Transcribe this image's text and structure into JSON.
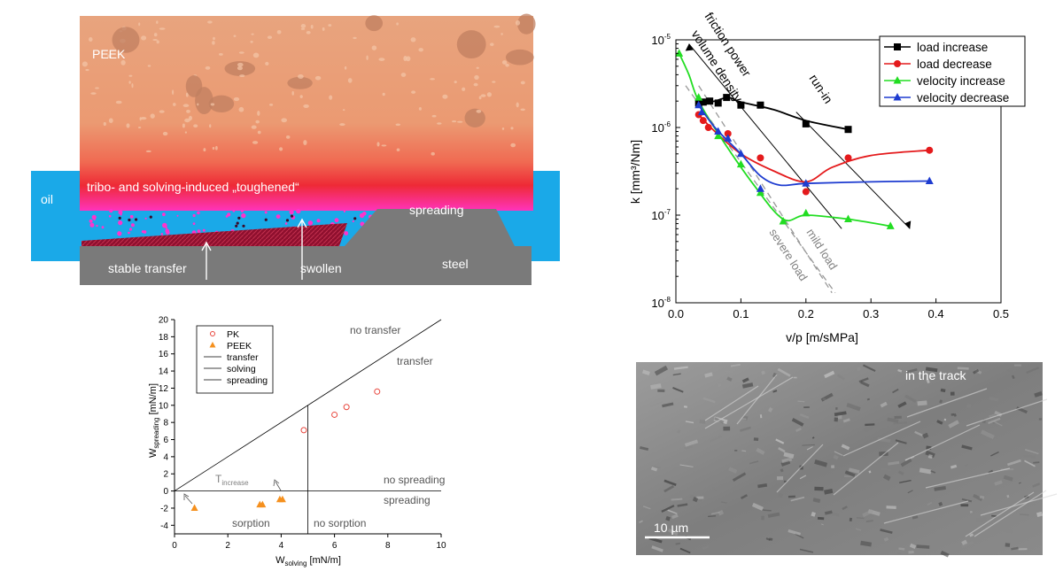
{
  "schematic": {
    "peek_label": "PEEK",
    "oil_label": "oil",
    "layer_label": "tribo- and solving-induced „toughened“",
    "spreading_label": "spreading",
    "stable_transfer_label": "stable transfer",
    "swollen_label": "swollen",
    "steel_label": "steel",
    "colors": {
      "oil": "#1aa9e8",
      "steel": "#7a7a7a",
      "peek": "#e9a57a",
      "layer": "#ee2233",
      "transfer": "#9b1030",
      "particles": "#ff33cc"
    }
  },
  "sem": {
    "label": "in the track",
    "scalebar": "10 µm"
  },
  "chart_data": [
    {
      "type": "scatter",
      "id": "wear",
      "xlabel": "v/p [m/sMPa]",
      "ylabel": "k [mm³/Nm]",
      "xlim": [
        0,
        0.5
      ],
      "ylim": [
        1e-08,
        1e-05
      ],
      "yscale": "log",
      "x_ticks": [
        "0.0",
        "0.1",
        "0.2",
        "0.3",
        "0.4",
        "0.5"
      ],
      "y_ticks": [
        "10-8",
        "10-7",
        "10-6",
        "10-5"
      ],
      "legend_position": "top-right",
      "series": [
        {
          "name": "load increase",
          "color": "#000000",
          "marker": "square",
          "points": [
            [
              0.035,
              1.9e-06
            ],
            [
              0.042,
              1.95e-06
            ],
            [
              0.052,
              2e-06
            ],
            [
              0.065,
              1.9e-06
            ],
            [
              0.078,
              2.2e-06
            ],
            [
              0.1,
              1.8e-06
            ],
            [
              0.13,
              1.8e-06
            ],
            [
              0.2,
              1.1e-06
            ],
            [
              0.265,
              9.5e-07
            ]
          ],
          "curve": [
            [
              0.035,
              1.9e-06
            ],
            [
              0.06,
              2e-06
            ],
            [
              0.08,
              2.2e-06
            ],
            [
              0.1,
              1.95e-06
            ],
            [
              0.15,
              1.6e-06
            ],
            [
              0.2,
              1.2e-06
            ],
            [
              0.265,
              9.5e-07
            ]
          ]
        },
        {
          "name": "load decrease",
          "color": "#e41a1c",
          "marker": "circle",
          "points": [
            [
              0.035,
              1.4e-06
            ],
            [
              0.042,
              1.2e-06
            ],
            [
              0.05,
              1e-06
            ],
            [
              0.08,
              8.5e-07
            ],
            [
              0.13,
              4.5e-07
            ],
            [
              0.2,
              1.85e-07
            ],
            [
              0.265,
              4.5e-07
            ],
            [
              0.39,
              5.5e-07
            ]
          ],
          "curve": [
            [
              0.035,
              1.4e-06
            ],
            [
              0.06,
              9e-07
            ],
            [
              0.1,
              5e-07
            ],
            [
              0.15,
              3.2e-07
            ],
            [
              0.2,
              2.4e-07
            ],
            [
              0.24,
              3.5e-07
            ],
            [
              0.3,
              4.8e-07
            ],
            [
              0.39,
              5.5e-07
            ]
          ]
        },
        {
          "name": "velocity increase",
          "color": "#22dd22",
          "marker": "triangle",
          "points": [
            [
              0.005,
              7e-06
            ],
            [
              0.035,
              2.2e-06
            ],
            [
              0.065,
              8e-07
            ],
            [
              0.1,
              3.8e-07
            ],
            [
              0.13,
              1.8e-07
            ],
            [
              0.165,
              8.5e-08
            ],
            [
              0.2,
              1.05e-07
            ],
            [
              0.265,
              9e-08
            ],
            [
              0.33,
              7.5e-08
            ]
          ],
          "curve": [
            [
              0.005,
              7e-06
            ],
            [
              0.02,
              4e-06
            ],
            [
              0.035,
              2e-06
            ],
            [
              0.07,
              7.5e-07
            ],
            [
              0.12,
              2.2e-07
            ],
            [
              0.165,
              9e-08
            ],
            [
              0.2,
              1e-07
            ],
            [
              0.265,
              9e-08
            ],
            [
              0.33,
              7.5e-08
            ]
          ]
        },
        {
          "name": "velocity decrease",
          "color": "#1e3cd0",
          "marker": "triangle",
          "points": [
            [
              0.035,
              1.8e-06
            ],
            [
              0.04,
              1.5e-06
            ],
            [
              0.065,
              9e-07
            ],
            [
              0.08,
              7.5e-07
            ],
            [
              0.1,
              5e-07
            ],
            [
              0.13,
              2e-07
            ],
            [
              0.2,
              2.3e-07
            ],
            [
              0.39,
              2.45e-07
            ]
          ],
          "curve": [
            [
              0.035,
              1.8e-06
            ],
            [
              0.06,
              1e-06
            ],
            [
              0.1,
              5e-07
            ],
            [
              0.13,
              2.8e-07
            ],
            [
              0.16,
              2.2e-07
            ],
            [
              0.2,
              2.3e-07
            ],
            [
              0.3,
              2.4e-07
            ],
            [
              0.39,
              2.45e-07
            ]
          ]
        }
      ],
      "annotations": [
        {
          "text": "friction power",
          "line": [
            [
              0.255,
              7e-08
            ],
            [
              0.02,
              9e-06
            ]
          ]
        },
        {
          "text": "volume density"
        },
        {
          "text": "run-in",
          "line": [
            [
              0.185,
              1.5e-06
            ],
            [
              0.36,
              7e-08
            ]
          ]
        },
        {
          "text": "mild load",
          "line": [
            [
              0.035,
              3e-06
            ],
            [
              0.24,
              1.3e-08
            ]
          ]
        },
        {
          "text": "severe load",
          "line": [
            [
              0.015,
              3e-06
            ],
            [
              0.245,
              1.3e-08
            ]
          ]
        }
      ]
    },
    {
      "type": "scatter",
      "id": "wetting",
      "xlabel": "Wsolving [mN/m]",
      "ylabel": "Wspreading [mN/m]",
      "xlim": [
        0,
        10
      ],
      "ylim": [
        -5,
        20
      ],
      "x_ticks": [
        "0",
        "2",
        "4",
        "6",
        "8",
        "10"
      ],
      "y_ticks": [
        "-4",
        "-2",
        "0",
        "2",
        "4",
        "6",
        "8",
        "10",
        "12",
        "14",
        "16",
        "18",
        "20"
      ],
      "legend_position": "top-left",
      "series": [
        {
          "name": "PK",
          "color": "#e8453c",
          "marker": "open-circle",
          "points": [
            [
              4.85,
              7.1
            ],
            [
              6.0,
              8.9
            ],
            [
              6.45,
              9.8
            ],
            [
              7.6,
              11.6
            ]
          ]
        },
        {
          "name": "PEEK",
          "color": "#f5901e",
          "marker": "triangle",
          "points": [
            [
              0.75,
              -2.0
            ],
            [
              3.2,
              -1.6
            ],
            [
              3.3,
              -1.6
            ],
            [
              3.95,
              -1.0
            ],
            [
              4.05,
              -1.0
            ]
          ]
        },
        {
          "name": "transfer",
          "color": "#000000",
          "line": [
            [
              0,
              0
            ],
            [
              10,
              20
            ]
          ]
        },
        {
          "name": "solving",
          "color": "#000000",
          "line": [
            [
              5,
              -5
            ],
            [
              5,
              10
            ]
          ]
        },
        {
          "name": "spreading",
          "color": "#000000",
          "line": [
            [
              0,
              0
            ],
            [
              10,
              0
            ]
          ]
        }
      ],
      "region_labels": [
        "no transfer",
        "transfer",
        "no spreading",
        "spreading",
        "sorption",
        "no sorption"
      ],
      "tincrease_label": "Tincrease"
    }
  ]
}
